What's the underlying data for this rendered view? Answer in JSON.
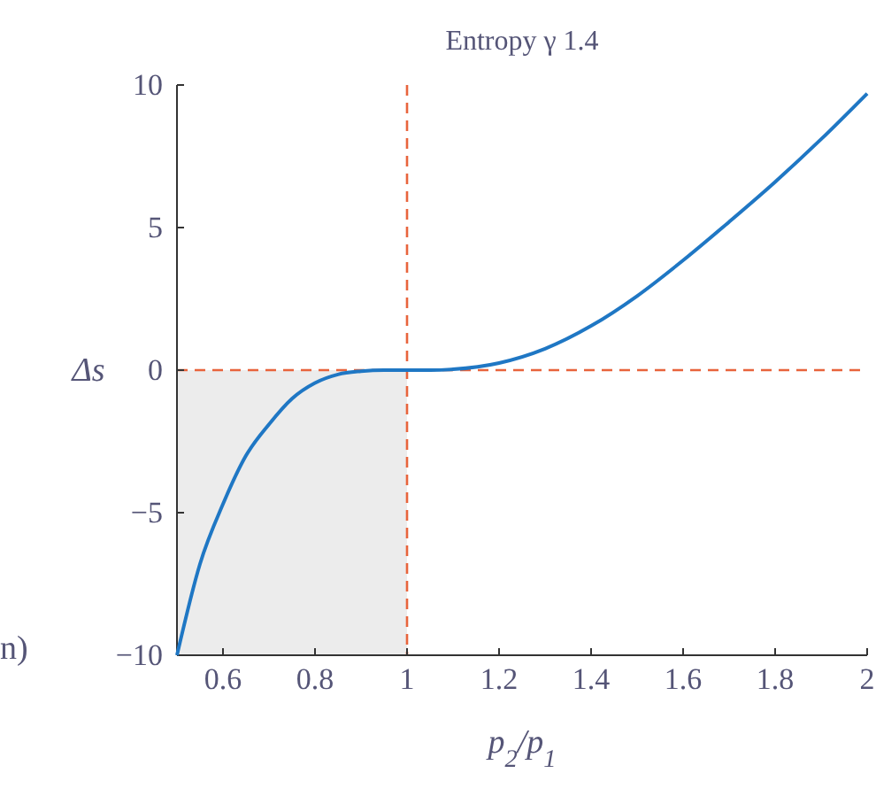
{
  "chart_data": {
    "type": "line",
    "title": "Entropy γ 1.4",
    "xlabel": "p$_{2}$/p$_{1}$",
    "ylabel": "Δs",
    "x": [
      0.5,
      0.55,
      0.6,
      0.65,
      0.7,
      0.75,
      0.8,
      0.85,
      0.9,
      0.95,
      1,
      1.05,
      1.1,
      1.2,
      1.3,
      1.4,
      1.5,
      1.6,
      1.7,
      1.8,
      1.9,
      2
    ],
    "series": [
      {
        "color": "#1f77c4",
        "values": [
          -10,
          -6.8,
          -4.7,
          -3,
          -1.9,
          -1,
          -0.45,
          -0.15,
          -0.04,
          0,
          0,
          0,
          0.03,
          0.25,
          0.75,
          1.55,
          2.6,
          3.85,
          5.2,
          6.6,
          8.1,
          9.7
        ]
      }
    ],
    "xlim": [
      0.5,
      2
    ],
    "xticks": [
      0.6,
      0.8,
      1,
      1.2,
      1.4,
      1.6,
      1.8,
      2
    ],
    "ylim": [
      -10,
      10
    ],
    "yticks": [
      {
        "value": -10,
        "label": "−10"
      },
      {
        "value": -5,
        "label": "−5"
      },
      0,
      5,
      10
    ],
    "ref_lines": [
      {
        "axis": "x",
        "value": 1,
        "color": "#e8643c",
        "line_style": "dashed"
      },
      {
        "axis": "y",
        "value": 0,
        "color": "#e8643c",
        "line_style": "dashed"
      }
    ],
    "bands": [
      {
        "axis": "x",
        "from": 0.5,
        "to": 1,
        "color": "#ececec"
      }
    ],
    "annotations": [
      "n)"
    ],
    "grid": false,
    "line_style": "solid",
    "marker": "none"
  }
}
